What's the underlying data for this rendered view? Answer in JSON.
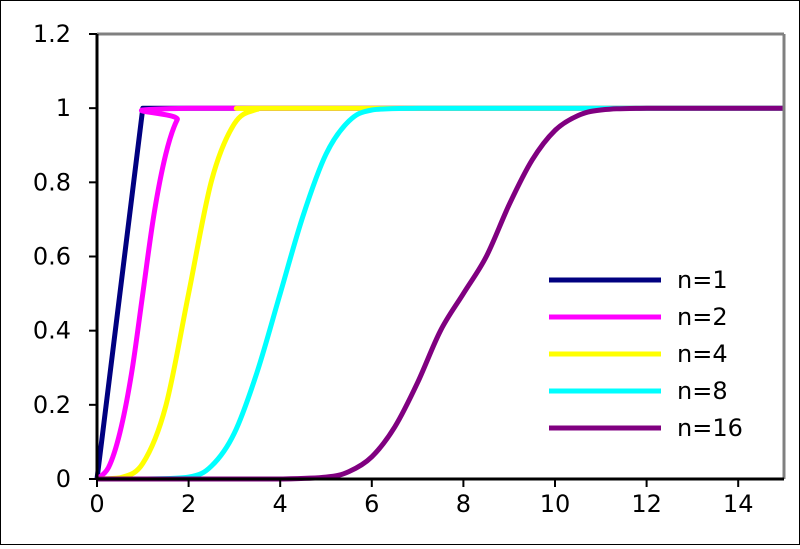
{
  "chart_data": {
    "type": "line",
    "title": "",
    "xlabel": "",
    "ylabel": "",
    "xlim": [
      0,
      15
    ],
    "ylim": [
      0,
      1.2
    ],
    "x_ticks": [
      0,
      2,
      4,
      6,
      8,
      10,
      12,
      14
    ],
    "x_tick_labels": [
      "0",
      "2",
      "4",
      "6",
      "8",
      "10",
      "12",
      "14"
    ],
    "y_ticks": [
      0,
      0.2,
      0.4,
      0.6,
      0.8,
      1,
      1.2
    ],
    "y_tick_labels": [
      "0",
      "0.2",
      "0.4",
      "0.6",
      "0.8",
      "1",
      "1.2"
    ],
    "grid": false,
    "legend_position": "bottom-right",
    "series": [
      {
        "name": "n=1",
        "color": "#000080",
        "x": [
          0,
          1,
          15
        ],
        "y": [
          0,
          1,
          1
        ]
      },
      {
        "name": "n=2",
        "color": "#ff00ff",
        "x": [
          0,
          0.25,
          0.5,
          0.75,
          1,
          1.25,
          1.5,
          1.75,
          2,
          15
        ],
        "y": [
          0,
          0.031,
          0.125,
          0.281,
          0.5,
          0.719,
          0.875,
          0.969,
          1,
          1
        ]
      },
      {
        "name": "n=4",
        "color": "#ffff00",
        "x": [
          0,
          0.5,
          1,
          1.5,
          2,
          2.5,
          3,
          3.5,
          4,
          15
        ],
        "y": [
          0,
          0.003,
          0.042,
          0.196,
          0.5,
          0.804,
          0.958,
          0.997,
          1,
          1
        ]
      },
      {
        "name": "n=8",
        "color": "#00ffff",
        "x": [
          0,
          1,
          2,
          2.5,
          3,
          3.5,
          4,
          4.5,
          5,
          5.5,
          6,
          7,
          8,
          15
        ],
        "y": [
          0,
          0.0,
          0.005,
          0.035,
          0.124,
          0.29,
          0.5,
          0.71,
          0.876,
          0.965,
          0.995,
          1,
          1,
          1
        ]
      },
      {
        "name": "n=16",
        "color": "#800080",
        "x": [
          0,
          3,
          4,
          5,
          5.5,
          6,
          6.5,
          7,
          7.5,
          8,
          8.5,
          9,
          9.5,
          10,
          10.5,
          11,
          12,
          15
        ],
        "y": [
          0,
          0.0,
          0.0,
          0.005,
          0.02,
          0.06,
          0.14,
          0.26,
          0.4,
          0.5,
          0.6,
          0.74,
          0.86,
          0.94,
          0.98,
          0.995,
          1,
          1
        ]
      }
    ]
  }
}
